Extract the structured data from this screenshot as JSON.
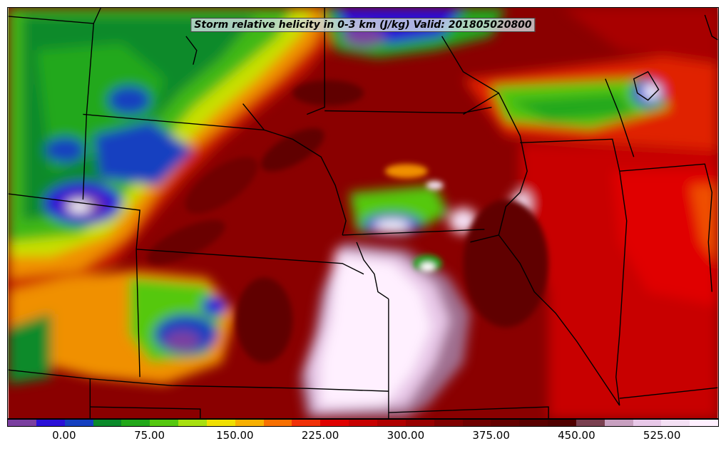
{
  "title": "Storm relative helicity in 0-3 km (J/kg) Valid: 201805020800",
  "colorbar": {
    "colors": [
      "#7b3fa0",
      "#2a10d8",
      "#1540c0",
      "#0a8a2a",
      "#22a81a",
      "#55c810",
      "#a8e010",
      "#f0e000",
      "#f8b000",
      "#f87000",
      "#f03008",
      "#e00000",
      "#c80000",
      "#b00000",
      "#980000",
      "#800000",
      "#700000",
      "#640000",
      "#5a0000",
      "#500000",
      "#7a4050",
      "#c8a0c0",
      "#e8c8e8",
      "#f4e0f4",
      "#fff0ff"
    ],
    "tick_labels": [
      "0.00",
      "75.00",
      "150.00",
      "225.00",
      "300.00",
      "375.00",
      "450.00",
      "525.00"
    ]
  }
}
